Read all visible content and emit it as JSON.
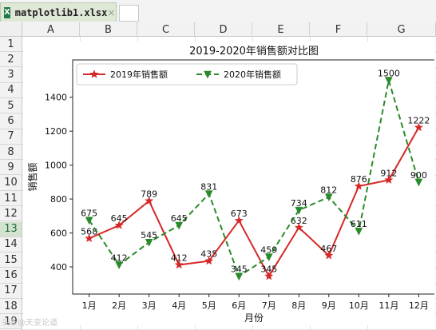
{
  "tab": {
    "filename": "matplotlib1.xlsx",
    "icon": "X",
    "close": "×"
  },
  "columns": [
    "A",
    "B",
    "C",
    "D",
    "E",
    "F",
    "G"
  ],
  "rows": [
    "1",
    "2",
    "3",
    "4",
    "5",
    "6",
    "7",
    "8",
    "9",
    "10",
    "11",
    "12",
    "13",
    "14",
    "15",
    "16",
    "17",
    "18",
    "19"
  ],
  "active_row": "13",
  "watermark": "头条@天变论道",
  "colors": {
    "s2019": "#d62728",
    "s2020": "#2a8a2a",
    "active_row_bg": "#d4e3d0"
  },
  "chart_data": {
    "type": "line",
    "title": "2019-2020年销售额对比图",
    "xlabel": "月份",
    "ylabel": "销售额",
    "categories": [
      "1月",
      "2月",
      "3月",
      "4月",
      "5月",
      "6月",
      "7月",
      "8月",
      "9月",
      "10月",
      "11月",
      "12月"
    ],
    "ylim": [
      240,
      1620
    ],
    "yticks": [
      400,
      600,
      800,
      1000,
      1200,
      1400
    ],
    "legend_position": "top-left",
    "grid": false,
    "series": [
      {
        "name": "2019年销售额",
        "values": [
          568,
          645,
          789,
          412,
          435,
          673,
          345,
          632,
          467,
          876,
          912,
          1222
        ],
        "color": "#d62728",
        "marker": "star",
        "line": "solid"
      },
      {
        "name": "2020年销售额",
        "values": [
          675,
          412,
          545,
          645,
          831,
          345,
          459,
          734,
          812,
          611,
          1500,
          900
        ],
        "color": "#2a8a2a",
        "marker": "triangle-down",
        "line": "dashed"
      }
    ]
  }
}
